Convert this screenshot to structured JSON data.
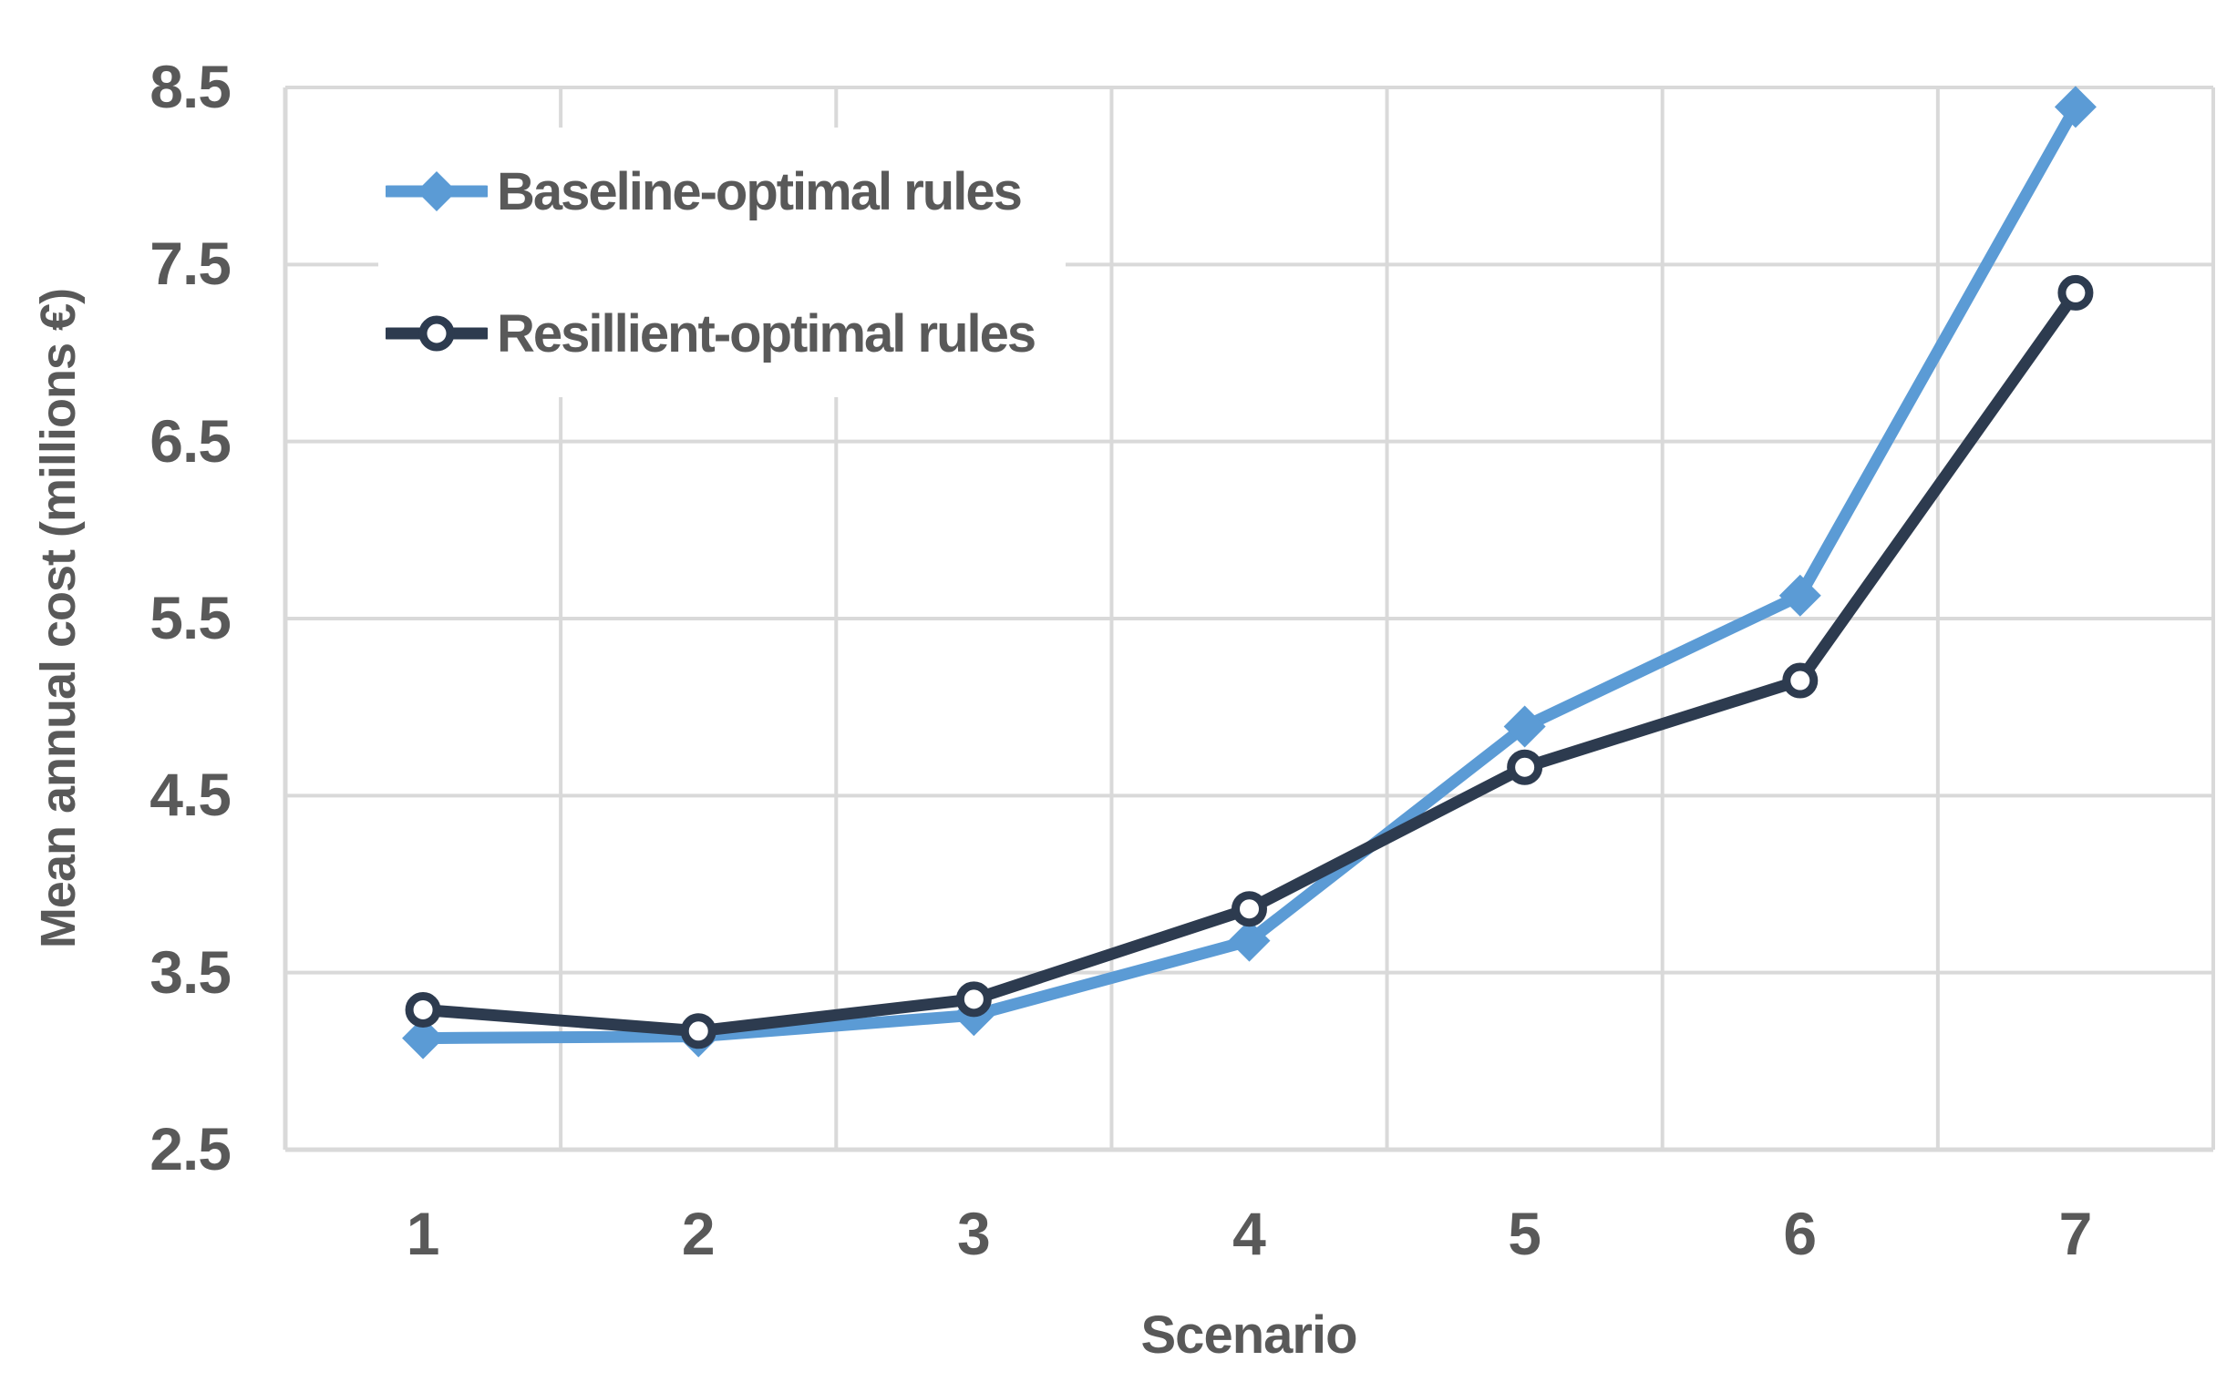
{
  "chart_data": {
    "type": "line",
    "categories": [
      "1",
      "2",
      "3",
      "4",
      "5",
      "6",
      "7"
    ],
    "series": [
      {
        "name": "Baseline-optimal rules",
        "marker": "diamond-solid",
        "color": "#5B9BD5",
        "values": [
          3.13,
          3.14,
          3.26,
          3.68,
          4.89,
          5.63,
          8.39
        ]
      },
      {
        "name": "Resillient-optimal rules",
        "marker": "circle-open",
        "color": "#2D3B4F",
        "values": [
          3.29,
          3.17,
          3.35,
          3.86,
          4.66,
          5.15,
          7.34
        ]
      }
    ],
    "title": "",
    "xlabel": "Scenario",
    "ylabel": "Mean annual cost (millions €)",
    "ylim": [
      2.5,
      8.5
    ],
    "ytick_step": 1.0,
    "yticks": [
      "2.5",
      "3.5",
      "4.5",
      "5.5",
      "6.5",
      "7.5",
      "8.5"
    ],
    "grid": "both",
    "legend_position": "inside-top-left",
    "colors": {
      "gridline": "#D9D9D9",
      "axis_line": "#D9D9D9",
      "axis_text": "#595959",
      "background": "#FFFFFF"
    }
  }
}
